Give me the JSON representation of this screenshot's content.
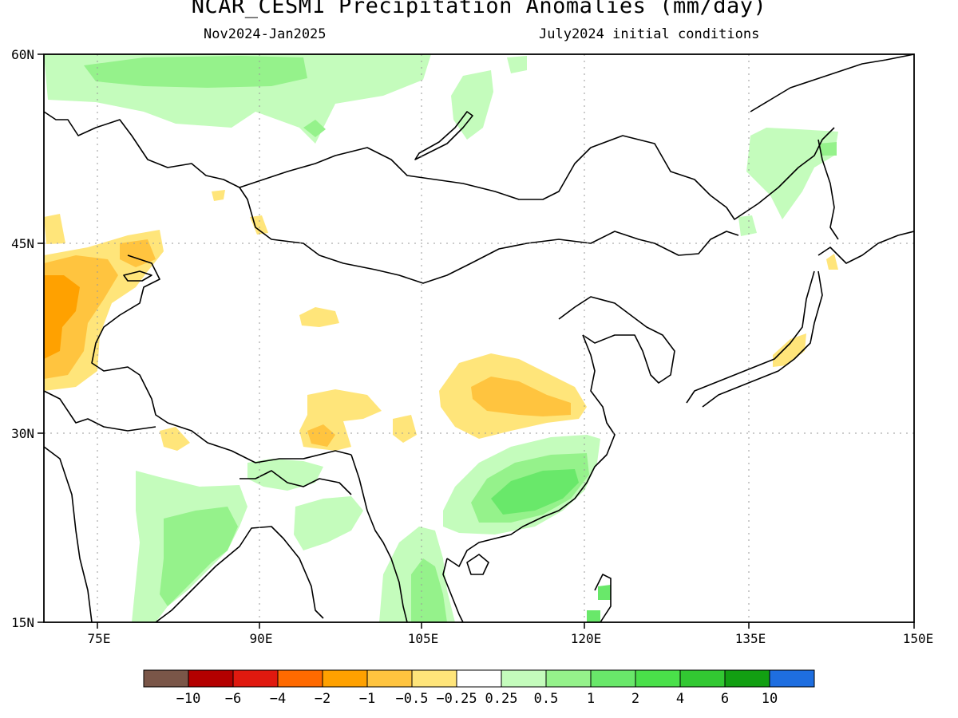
{
  "title": "NCAR_CESM1 Precipitation Anomalies (mm/day)",
  "subtitle_left": "Nov2024-Jan2025",
  "subtitle_right": "July2024 initial conditions",
  "map": {
    "lon_range": [
      70,
      150
    ],
    "lat_range": [
      15,
      60
    ],
    "x_ticks": [
      "75E",
      "90E",
      "105E",
      "120E",
      "135E",
      "150E"
    ],
    "x_tick_values": [
      75,
      90,
      105,
      120,
      135,
      150
    ],
    "y_ticks": [
      "60N",
      "45N",
      "30N",
      "15N"
    ],
    "y_tick_values": [
      60,
      45,
      30,
      15
    ],
    "gridlines": "dotted"
  },
  "colorbar": {
    "colors": [
      "#7a5648",
      "#b40000",
      "#e0190f",
      "#ff6a00",
      "#ffa100",
      "#ffc43f",
      "#ffe57a",
      "#ffffff",
      "#c4fcbc",
      "#95f28b",
      "#69e86a",
      "#4ae04a",
      "#32c832",
      "#129f12",
      "#1e6ee0"
    ],
    "labels": [
      "-10",
      "-6",
      "-4",
      "-2",
      "-1",
      "-0.5",
      "-0.25",
      "0.25",
      "0.5",
      "1",
      "2",
      "4",
      "6",
      "10"
    ]
  }
}
